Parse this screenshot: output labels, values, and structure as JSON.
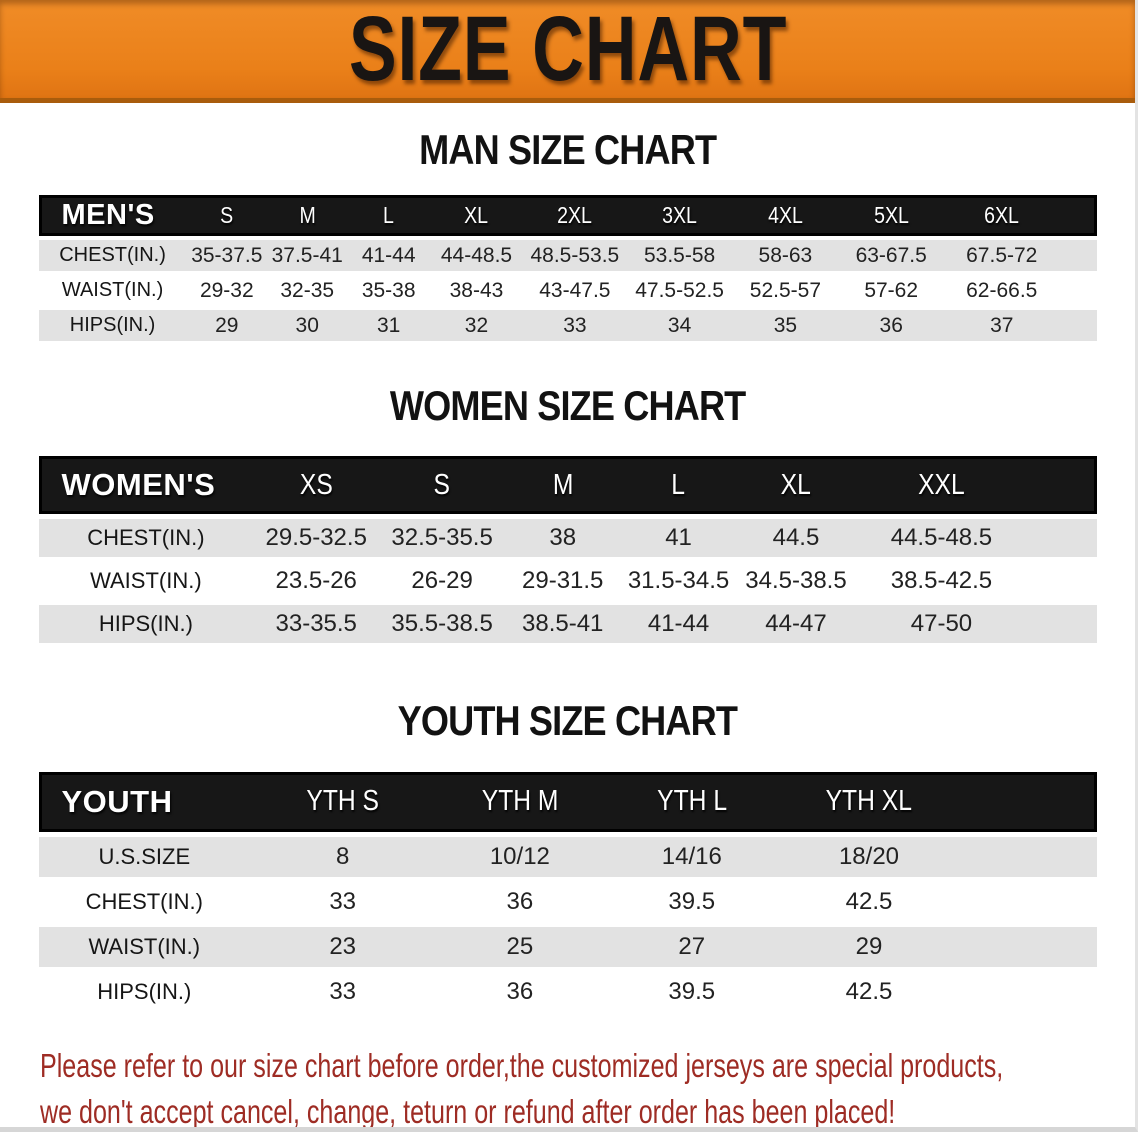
{
  "banner": {
    "title": "SIZE CHART",
    "background_color": "#EA8019",
    "text_color": "#191513"
  },
  "sections": [
    {
      "heading": "MAN SIZE CHART"
    },
    {
      "heading": "WOMEN SIZE CHART"
    },
    {
      "heading": "YOUTH SIZE CHART"
    }
  ],
  "disclaimer": {
    "line1": "Please refer to our size chart before order,the customized jerseys are special products,",
    "line2": "we don't accept cancel, change, teturn or refund after order has been placed!",
    "color": "#9E2C24"
  },
  "chart_data": [
    {
      "type": "table",
      "title": "MAN SIZE CHART",
      "group_label": "MEN'S",
      "columns": [
        "S",
        "M",
        "L",
        "XL",
        "2XL",
        "3XL",
        "4XL",
        "5XL",
        "6XL"
      ],
      "rows": [
        {
          "label": "CHEST(IN.)",
          "values": [
            "35-37.5",
            "37.5-41",
            "41-44",
            "44-48.5",
            "48.5-53.5",
            "53.5-58",
            "58-63",
            "63-67.5",
            "67.5-72"
          ]
        },
        {
          "label": "WAIST(IN.)",
          "values": [
            "29-32",
            "32-35",
            "35-38",
            "38-43",
            "43-47.5",
            "47.5-52.5",
            "52.5-57",
            "57-62",
            "62-66.5"
          ]
        },
        {
          "label": "HIPS(IN.)",
          "values": [
            "29",
            "30",
            "31",
            "32",
            "33",
            "34",
            "35",
            "36",
            "37"
          ]
        }
      ]
    },
    {
      "type": "table",
      "title": "WOMEN SIZE CHART",
      "group_label": "WOMEN'S",
      "columns": [
        "XS",
        "S",
        "M",
        "L",
        "XL",
        "XXL"
      ],
      "rows": [
        {
          "label": "CHEST(IN.)",
          "values": [
            "29.5-32.5",
            "32.5-35.5",
            "38",
            "41",
            "44.5",
            "44.5-48.5"
          ]
        },
        {
          "label": "WAIST(IN.)",
          "values": [
            "23.5-26",
            "26-29",
            "29-31.5",
            "31.5-34.5",
            "34.5-38.5",
            "38.5-42.5"
          ]
        },
        {
          "label": "HIPS(IN.)",
          "values": [
            "33-35.5",
            "35.5-38.5",
            "38.5-41",
            "41-44",
            "44-47",
            "47-50"
          ]
        }
      ]
    },
    {
      "type": "table",
      "title": "YOUTH SIZE CHART",
      "group_label": "YOUTH",
      "columns": [
        "YTH S",
        "YTH M",
        "YTH L",
        "YTH XL"
      ],
      "rows": [
        {
          "label": "U.S.SIZE",
          "values": [
            "8",
            "10/12",
            "14/16",
            "18/20"
          ]
        },
        {
          "label": "CHEST(IN.)",
          "values": [
            "33",
            "36",
            "39.5",
            "42.5"
          ]
        },
        {
          "label": "WAIST(IN.)",
          "values": [
            "23",
            "25",
            "27",
            "29"
          ]
        },
        {
          "label": "HIPS(IN.)",
          "values": [
            "33",
            "36",
            "39.5",
            "42.5"
          ]
        }
      ]
    }
  ]
}
